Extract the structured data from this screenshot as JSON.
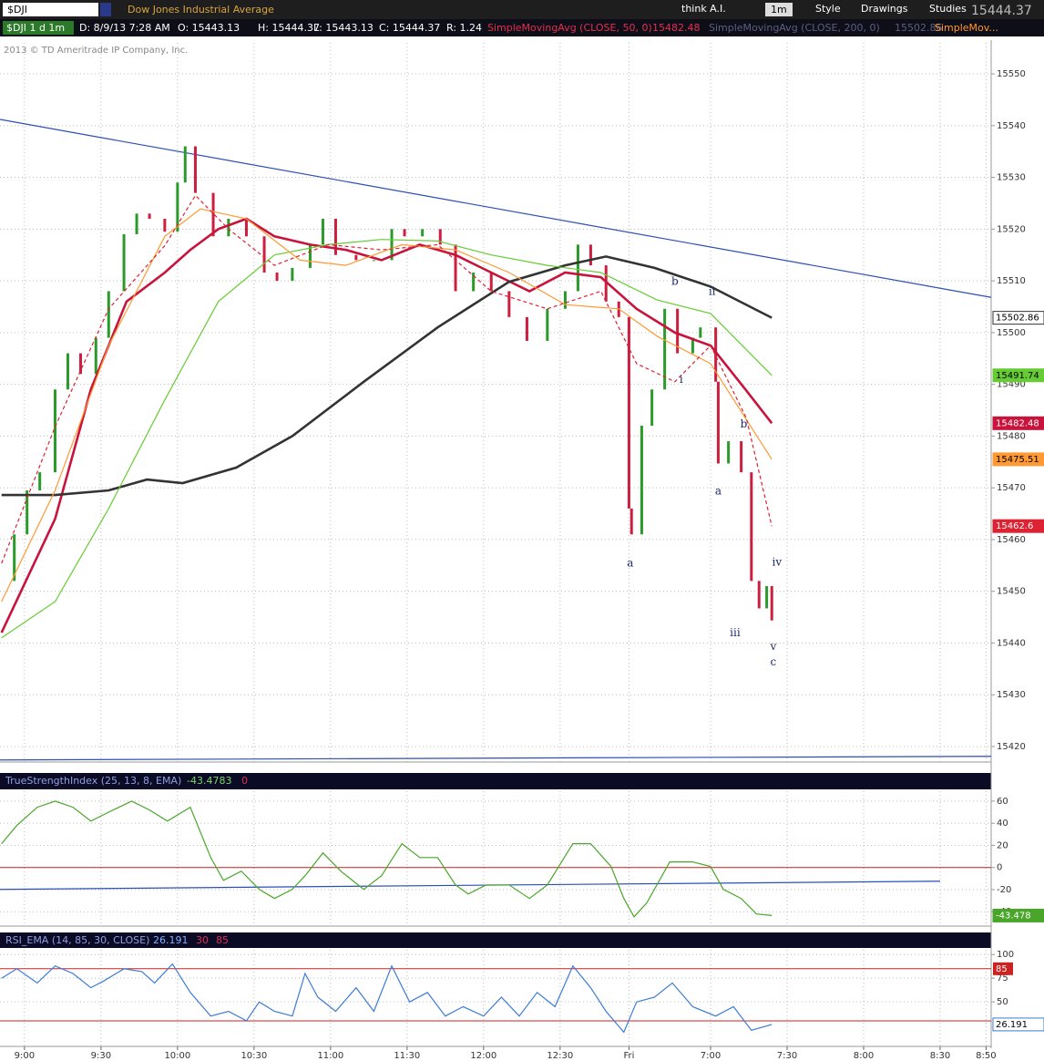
{
  "toolbar": {
    "symbol": "$DJI",
    "description": "Dow Jones Industrial Average",
    "think": "think A.I.",
    "period": "1m",
    "style": "Style",
    "drawings": "Drawings",
    "studies": "Studies"
  },
  "info_bar": {
    "symbol_period": "$DJI 1 d 1m",
    "date": "D: 8/9/13 7:28 AM",
    "open": "O: 15443.13",
    "high": "H: 15444.37",
    "low": "L: 15443.13",
    "close": "C: 15444.37",
    "range": "R: 1.24",
    "truncated": "SimpleMov..."
  },
  "copyright": "2013 © TD Ameritrade IP Company, Inc.",
  "chart_data": [
    {
      "type": "line",
      "xlim": [
        -9.6,
        379
      ],
      "ylim": [
        15417,
        15556
      ],
      "xticks": [
        {
          "value": 0,
          "label": "9:00"
        },
        {
          "value": 30,
          "label": "9:30"
        },
        {
          "value": 60,
          "label": "10:00"
        },
        {
          "value": 90,
          "label": "10:30"
        },
        {
          "value": 120,
          "label": "11:00"
        },
        {
          "value": 150,
          "label": "11:30"
        },
        {
          "value": 180,
          "label": "12:00"
        },
        {
          "value": 210,
          "label": "12:30"
        },
        {
          "value": 237,
          "label": "Fri"
        },
        {
          "value": 269,
          "label": "7:00"
        },
        {
          "value": 299,
          "label": "7:30"
        },
        {
          "value": 329,
          "label": "8:00"
        },
        {
          "value": 359,
          "label": "8:30"
        },
        {
          "value": 377,
          "label": "8:50"
        }
      ],
      "yticks": [
        15420,
        15430,
        15440,
        15450,
        15460,
        15470,
        15480,
        15490,
        15500,
        15510,
        15520,
        15530,
        15540,
        15550
      ],
      "grid": true,
      "series": [
        {
          "style": "bars",
          "up_color": "#2a9a2a",
          "down_color": "#cc1f3f",
          "x": [
            -9,
            -4,
            1,
            6,
            12,
            17,
            22,
            28,
            33,
            39,
            44,
            49,
            55,
            60,
            63,
            67,
            74,
            80,
            87,
            94,
            99,
            105,
            112,
            117,
            122,
            130,
            137,
            144,
            149,
            156,
            163,
            169,
            176,
            183,
            190,
            197,
            205,
            212,
            217,
            222,
            228,
            233,
            237,
            238,
            242,
            246,
            251,
            256,
            262,
            265,
            271,
            272,
            276,
            281,
            285,
            288,
            291,
            293
          ],
          "values": [
            15452,
            15461,
            15469.5,
            15473,
            15489,
            15496,
            15492,
            15499,
            15508,
            15519,
            15523,
            15522,
            15519.5,
            15529,
            15536,
            15527,
            15518.6,
            15522,
            15518.6,
            15511.6,
            15510,
            15512.5,
            15517,
            15522,
            15515,
            15514,
            15514,
            15520,
            15518.6,
            15520,
            15517,
            15508,
            15511.6,
            15508,
            15503,
            15498.4,
            15504.6,
            15508,
            15517,
            15513,
            15506,
            15503,
            15466,
            15461,
            15482,
            15489,
            15504.6,
            15496,
            15499,
            15501,
            15490.5,
            15474.7,
            15479,
            15473,
            15452,
            15446.7,
            15451,
            15444.37
          ]
        },
        {
          "name": "SimpleMovingAvg (CLOSE, 50, 0)",
          "style": "thick",
          "color": "#c8143c",
          "tag_text": "#ffffff",
          "x": [
            -9,
            12,
            26,
            40,
            55,
            65,
            76,
            87,
            98,
            112,
            126,
            140,
            155,
            169,
            183,
            198,
            212,
            226,
            240,
            255,
            269,
            283,
            293
          ],
          "values": [
            15442,
            15464,
            15489,
            15506,
            15511.6,
            15516,
            15520,
            15522,
            15518.6,
            15517,
            15516,
            15514,
            15517,
            15515,
            15511.6,
            15508,
            15511.6,
            15510.7,
            15504.6,
            15500,
            15497.5,
            15488.8,
            15482.48
          ]
        },
        {
          "name": "SimpleMovingAvg (CLOSE, 200, 0)",
          "style": "thick",
          "color": "#333333",
          "tag_text": "#000000",
          "tag_fill": "#ffffff",
          "x": [
            -9,
            12,
            33,
            48,
            62,
            83,
            105,
            133,
            162,
            190,
            212,
            228,
            247,
            269,
            293
          ],
          "values": [
            15468.6,
            15468.6,
            15469.5,
            15471.6,
            15470.9,
            15473.9,
            15480,
            15490.5,
            15501,
            15509.8,
            15513,
            15514.7,
            15512.5,
            15508.9,
            15502.86
          ]
        },
        {
          "style": "thin",
          "color": "#66cc33",
          "tag_text": "#000000",
          "x": [
            -9,
            12,
            33,
            55,
            76,
            98,
            119,
            140,
            162,
            183,
            205,
            226,
            248,
            269,
            293
          ],
          "values": [
            15441,
            15448,
            15466,
            15487,
            15506,
            15515,
            15517,
            15518,
            15517.7,
            15515,
            15513,
            15511.6,
            15506.3,
            15503.7,
            15491.74
          ]
        },
        {
          "style": "thin",
          "color": "#ff9933",
          "tag_text": "#000000",
          "x": [
            -9,
            12,
            33,
            55,
            69,
            87,
            108,
            126,
            148,
            169,
            190,
            212,
            233,
            248,
            269,
            293
          ],
          "values": [
            15448,
            15469.5,
            15497.5,
            15518.6,
            15523.9,
            15522,
            15514,
            15513,
            15517,
            15516,
            15511.6,
            15505.4,
            15504.6,
            15499.3,
            15494,
            15475.51
          ]
        },
        {
          "style": "dashed",
          "color": "#dd2233",
          "tag_text": "#ffffff",
          "x": [
            -9,
            12,
            33,
            55,
            67,
            80,
            98,
            119,
            140,
            162,
            183,
            205,
            226,
            240,
            255,
            269,
            283,
            293
          ],
          "values": [
            15455.4,
            15481.8,
            15504.6,
            15516.8,
            15526.5,
            15520,
            15513,
            15517,
            15516,
            15517,
            15508,
            15504.6,
            15508,
            15494,
            15490.5,
            15497.5,
            15483.5,
            15462.6
          ]
        }
      ],
      "trendlines": [
        {
          "color": "#2b4fb5",
          "x": [
            -9.6,
            379
          ],
          "values": [
            15541.2,
            15506.8
          ]
        },
        {
          "color": "#2b4fb5",
          "x": [
            -9.6,
            379
          ],
          "values": [
            15417.4,
            15418.1
          ]
        }
      ],
      "annotations": [
        {
          "text": "a",
          "x": 237.5,
          "y": 15455.4
        },
        {
          "text": "b",
          "x": 255,
          "y": 15509.8
        },
        {
          "text": "ii",
          "x": 269.6,
          "y": 15507.9
        },
        {
          "text": "i",
          "x": 257.5,
          "y": 15490.9
        },
        {
          "text": "b",
          "x": 282,
          "y": 15482.3
        },
        {
          "text": "a",
          "x": 272,
          "y": 15469.3
        },
        {
          "text": "iv",
          "x": 295,
          "y": 15455.6
        },
        {
          "text": "iii",
          "x": 278.6,
          "y": 15441.9
        },
        {
          "text": "v",
          "x": 293.6,
          "y": 15439.3
        },
        {
          "text": "c",
          "x": 293.6,
          "y": 15436.3
        }
      ]
    },
    {
      "type": "line",
      "title": "TrueStrengthIndex (25, 13, 8, EMA)",
      "xlim": [
        -9.6,
        379
      ],
      "ylim": [
        -53,
        69
      ],
      "yticks": [
        60,
        40,
        20,
        0,
        -20,
        -40
      ],
      "grid": true,
      "levels": [
        0
      ],
      "series": [
        {
          "style": "thin",
          "color": "#4aa62a",
          "tag_text": "#ffffff",
          "x": [
            -9,
            -3,
            5,
            12,
            19,
            26,
            33,
            42,
            49,
            56,
            65,
            73,
            78,
            85,
            92,
            98,
            105,
            110,
            117,
            124,
            133,
            140,
            148,
            155,
            162,
            169,
            174,
            181,
            190,
            198,
            205,
            215,
            222,
            230,
            235,
            239,
            244,
            253,
            262,
            269,
            274,
            281,
            287,
            293
          ],
          "values": [
            21.5,
            38,
            54.5,
            60,
            54.5,
            42,
            50,
            60,
            52,
            42,
            54.5,
            9,
            -11.6,
            -3.3,
            -19.8,
            -28,
            -19.8,
            -7.4,
            13.2,
            -3.3,
            -19.8,
            -7.4,
            21.5,
            9,
            9,
            -15.7,
            -24,
            -15.7,
            -15.7,
            -28,
            -15.7,
            21.5,
            21.5,
            0.8,
            -28,
            -44.6,
            -32,
            5,
            5,
            0.8,
            -19.8,
            -28,
            -42,
            -43.4783
          ],
          "value_labels": [
            null,
            null,
            null,
            null,
            null,
            null,
            null,
            null,
            null,
            null,
            null,
            null,
            null,
            null,
            null,
            null,
            null,
            null,
            null,
            null,
            null,
            null,
            null,
            null,
            null,
            null,
            null,
            null,
            null,
            null,
            null,
            null,
            null,
            null,
            null,
            null,
            null,
            null,
            null,
            null,
            null,
            null,
            null,
            "-43.478"
          ]
        }
      ],
      "trendlines": [
        {
          "color": "#2b4fb5",
          "x": [
            -9.6,
            359
          ],
          "values": [
            -19.8,
            -12.4
          ]
        }
      ]
    },
    {
      "type": "line",
      "title": "RSI_EMA (14, 85, 30, CLOSE)",
      "xlim": [
        -9.6,
        379
      ],
      "ylim": [
        3,
        105
      ],
      "yticks": [
        100,
        75,
        50
      ],
      "grid": true,
      "levels": [
        30,
        85
      ],
      "series": [
        {
          "style": "thin",
          "color": "#3a7bd5",
          "tag_text": "#000000",
          "tag_fill": "#ffffff",
          "x": [
            -9,
            -3,
            5,
            12,
            19,
            26,
            31,
            39,
            46,
            51,
            58,
            65,
            73,
            80,
            87,
            92,
            98,
            105,
            110,
            115,
            122,
            130,
            137,
            144,
            151,
            158,
            165,
            172,
            180,
            187,
            194,
            201,
            208,
            215,
            222,
            228,
            235,
            240,
            247,
            254,
            262,
            271,
            278,
            285,
            293
          ],
          "values": [
            75,
            85,
            70,
            88,
            80,
            65,
            72,
            85,
            82,
            70,
            90,
            60,
            35,
            40,
            30,
            50,
            40,
            35,
            80,
            55,
            40,
            65,
            40,
            88,
            50,
            60,
            35,
            45,
            35,
            55,
            35,
            60,
            45,
            88,
            65,
            40,
            18,
            50,
            55,
            70,
            45,
            35,
            45,
            20,
            26.191
          ]
        }
      ]
    }
  ]
}
